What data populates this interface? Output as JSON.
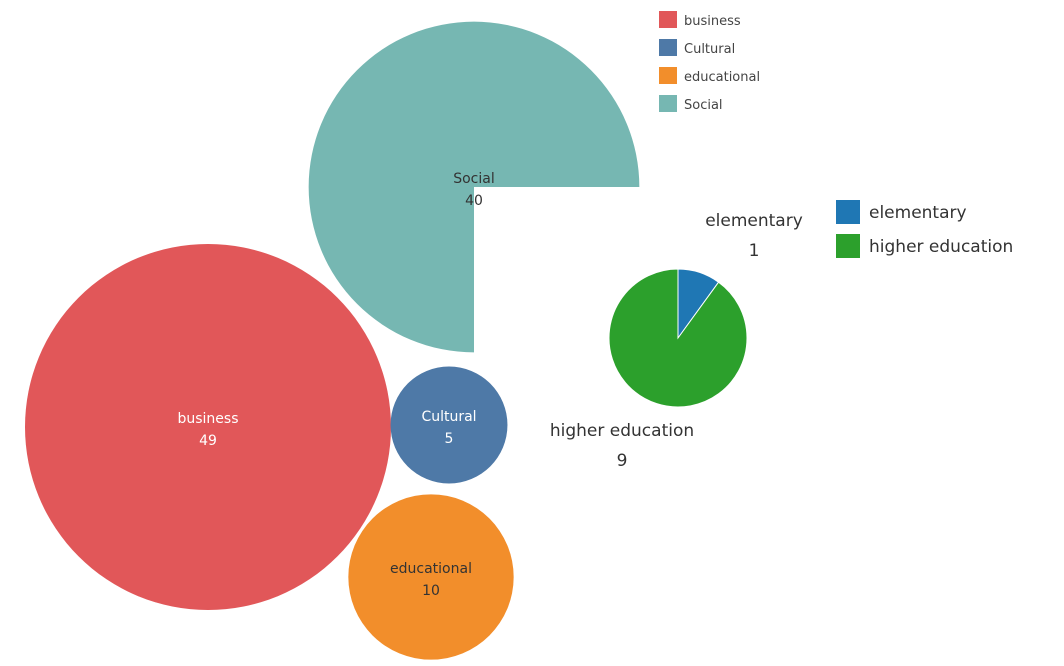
{
  "chart_data": [
    {
      "type": "bubble",
      "categories": [
        "business",
        "Cultural",
        "educational",
        "Social"
      ],
      "values": [
        49,
        5,
        10,
        40
      ],
      "colors": {
        "business": "#e15759",
        "Cultural": "#4e79a7",
        "educational": "#f28e2b",
        "Social": "#76b7b2"
      },
      "legend": {
        "placement": "top-right",
        "entries": [
          "business",
          "Cultural",
          "educational",
          "Social"
        ]
      }
    },
    {
      "type": "pie",
      "categories": [
        "elementary",
        "higher education"
      ],
      "values": [
        1,
        9
      ],
      "colors": {
        "elementary": "#1f77b4",
        "higher education": "#2ca02c"
      },
      "legend": {
        "placement": "right",
        "entries": [
          "elementary",
          "higher education"
        ]
      }
    }
  ]
}
